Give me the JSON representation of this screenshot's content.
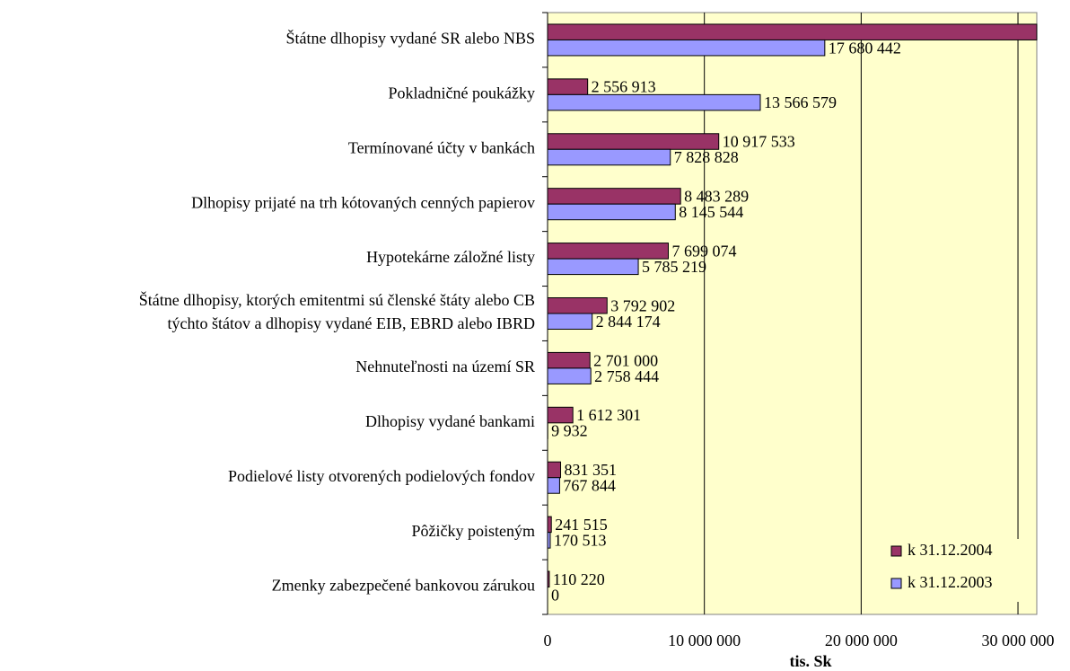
{
  "chart_data": {
    "type": "bar",
    "orientation": "horizontal",
    "categories": [
      "Štátne dlhopisy vydané SR alebo NBS",
      "Pokladničné poukážky",
      "Termínované účty v bankách",
      "Dlhopisy prijaté na trh kótovaných cenných papierov",
      "Hypotekárne záložné listy",
      [
        "Štátne dlhopisy, ktorých emitentmi sú členské štáty alebo CB",
        "týchto štátov a dlhopisy vydané EIB, EBRD alebo IBRD"
      ],
      "Nehnuteľnosti na území SR",
      "Dlhopisy vydané bankami",
      "Podielové listy otvorených podielových fondov",
      "Pôžičky poisteným",
      "Zmenky zabezpečené bankovou zárukou"
    ],
    "series": [
      {
        "name": "k 31.12.2004",
        "color": "#993366",
        "values": [
          31200000,
          2556913,
          10917533,
          8483289,
          7699074,
          3792902,
          2701000,
          1612301,
          831351,
          241515,
          110220
        ],
        "value_labels": [
          null,
          "2 556 913",
          "10 917 533",
          "8 483 289",
          "7 699 074",
          "3 792 902",
          "2 701 000",
          "1 612 301",
          "831 351",
          "241 515",
          "110 220"
        ]
      },
      {
        "name": "k 31.12.2003",
        "color": "#9999ff",
        "values": [
          17680442,
          13566579,
          7828828,
          8145544,
          5785219,
          2844174,
          2758444,
          9932,
          767844,
          170513,
          0
        ],
        "value_labels": [
          "17 680 442",
          "13 566 579",
          "7 828 828",
          "8 145 544",
          "5 785 219",
          "2 844 174",
          "2 758 444",
          "9 932",
          "767 844",
          "170 513",
          "0"
        ]
      }
    ],
    "xlim": [
      0,
      31200000
    ],
    "xticks": [
      0,
      {
        "value": 10000000,
        "label": "10 000 000"
      },
      {
        "value": 20000000,
        "label": "20 000 000"
      },
      {
        "value": 30000000,
        "label": "30 000 000"
      }
    ],
    "xlabel": "tis. Sk",
    "grid": true,
    "legend": "bottom-right"
  }
}
